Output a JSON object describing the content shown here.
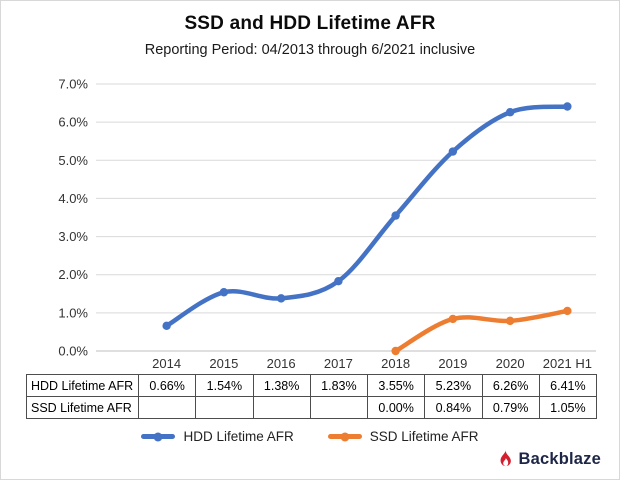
{
  "title": "SSD and HDD Lifetime AFR",
  "subtitle": "Reporting Period: 04/2013 through 6/2021 inclusive",
  "chart_data": {
    "type": "line",
    "categories": [
      "2014",
      "2015",
      "2016",
      "2017",
      "2018",
      "2019",
      "2020",
      "2021 H1"
    ],
    "series": [
      {
        "name": "HDD Lifetime AFR",
        "color": "#4472c4",
        "values": [
          0.66,
          1.54,
          1.38,
          1.83,
          3.55,
          5.23,
          6.26,
          6.41
        ]
      },
      {
        "name": "SSD Lifetime AFR",
        "color": "#ed7d31",
        "values": [
          null,
          null,
          null,
          null,
          0.0,
          0.84,
          0.79,
          1.05
        ]
      }
    ],
    "ylim": [
      0,
      7
    ],
    "ytick_step": 1,
    "ytick_labels": [
      "0.0%",
      "1.0%",
      "2.0%",
      "3.0%",
      "4.0%",
      "5.0%",
      "6.0%",
      "7.0%"
    ],
    "grid": true,
    "legend_position": "bottom",
    "xlabel": "",
    "ylabel": ""
  },
  "table": {
    "rows": [
      {
        "label": "HDD Lifetime AFR",
        "values": [
          "0.66%",
          "1.54%",
          "1.38%",
          "1.83%",
          "3.55%",
          "5.23%",
          "6.26%",
          "6.41%"
        ]
      },
      {
        "label": "SSD Lifetime AFR",
        "values": [
          "",
          "",
          "",
          "",
          "0.00%",
          "0.84%",
          "0.79%",
          "1.05%"
        ]
      }
    ]
  },
  "legend": {
    "items": [
      {
        "label": "HDD Lifetime AFR",
        "color": "#4472c4"
      },
      {
        "label": "SSD Lifetime AFR",
        "color": "#ed7d31"
      }
    ]
  },
  "logo": {
    "text": "Backblaze",
    "flame_color": "#d2202f",
    "text_color": "#1d2646"
  },
  "colors": {
    "gridline": "#d9d9d9",
    "axis_text": "#333333"
  }
}
